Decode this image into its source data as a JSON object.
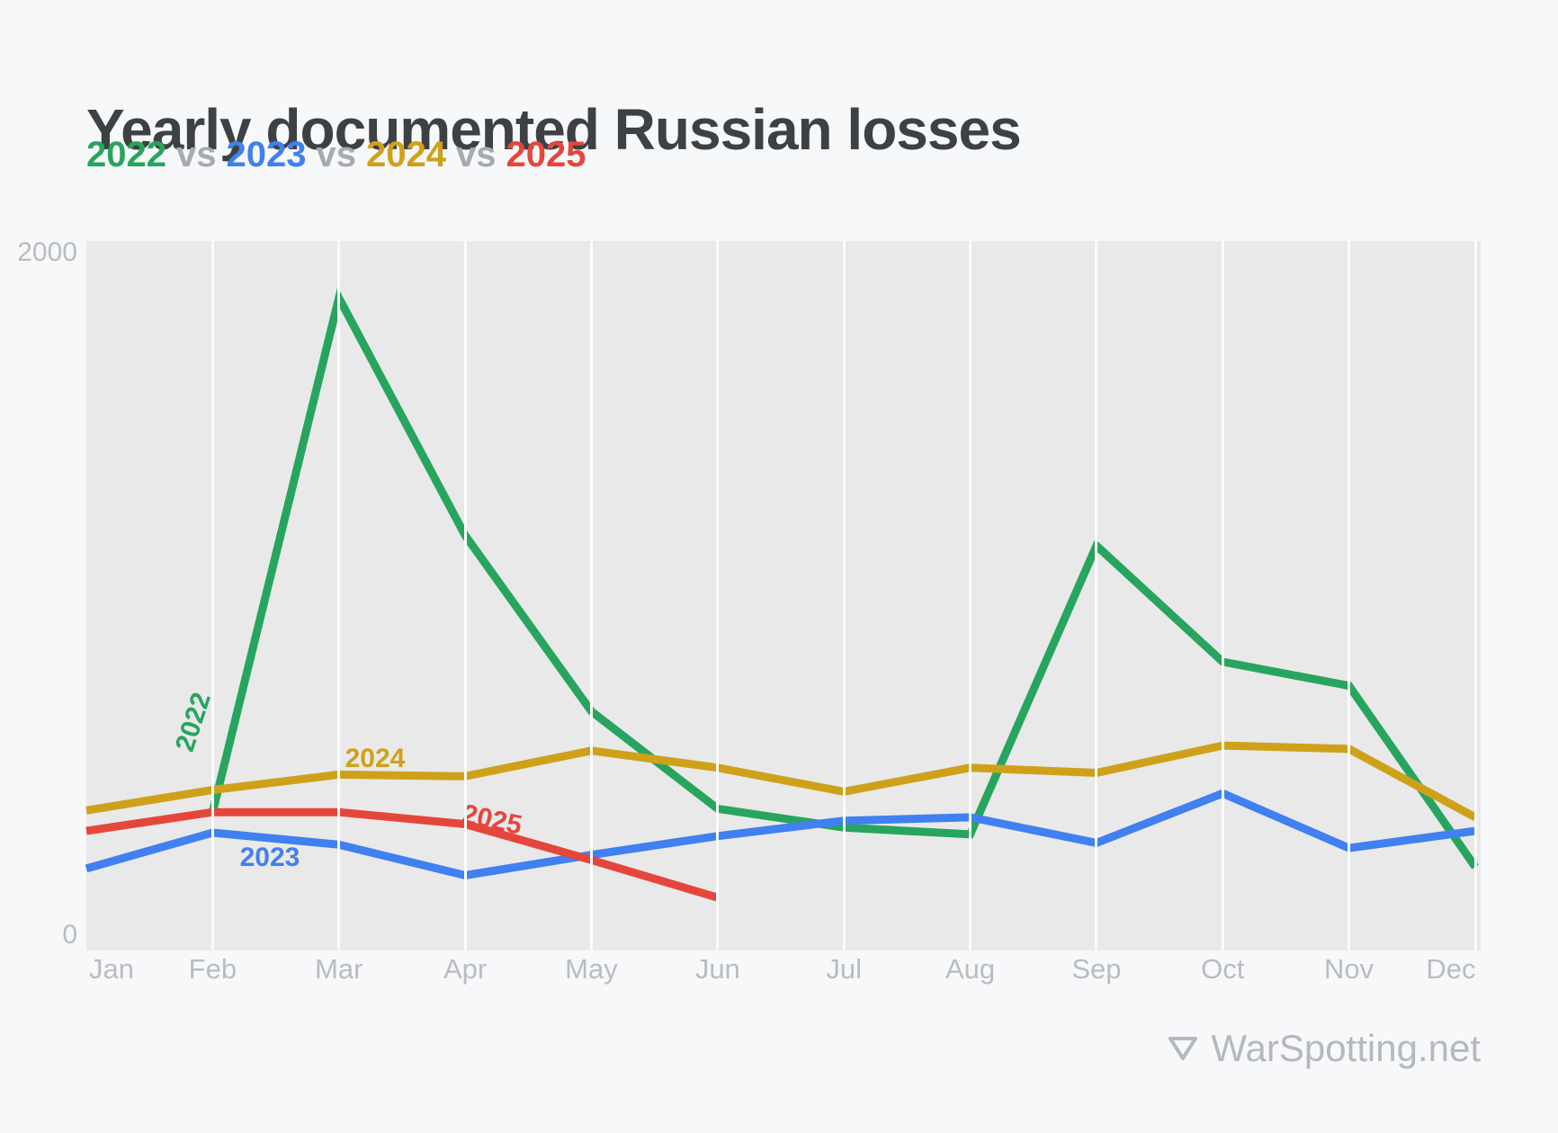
{
  "header": {
    "title": "Yearly documented Russian losses",
    "subtitle_separator": "vs"
  },
  "colors": {
    "title": "#3e4144",
    "separator_gray": "#a7aaae",
    "axis_label": "#b9bcc0",
    "page_background": "#f7f8f9",
    "plot_background": "#e9e9e9",
    "gridline": "#fbfbfb",
    "footer_gray": "#b5b8bc"
  },
  "y_axis": {
    "top_label": "2000",
    "bottom_label": "0"
  },
  "footer": {
    "brand": "WarSpotting.net",
    "icon": "triangle-down-outline-icon"
  },
  "chart_data": {
    "type": "line",
    "title": "Yearly documented Russian losses",
    "subtitle": "2022 vs 2023 vs 2024 vs 2025",
    "categories": [
      "Jan",
      "Feb",
      "Mar",
      "Apr",
      "May",
      "Jun",
      "Jul",
      "Aug",
      "Sep",
      "Oct",
      "Nov",
      "Dec"
    ],
    "ylim": [
      0,
      2000
    ],
    "ytick_labels": [
      "2000",
      "0"
    ],
    "grid": "vertical month gridlines on gray plot background, no horizontal gridlines",
    "legend": "inline colored years in subtitle + labels on lines",
    "series": [
      {
        "name": "2022",
        "color": "#27a55e",
        "values": [
          null,
          360,
          1865,
          1170,
          655,
          370,
          315,
          295,
          1140,
          800,
          730,
          200
        ]
      },
      {
        "name": "2023",
        "color": "#4080f0",
        "values": [
          195,
          300,
          265,
          175,
          235,
          290,
          335,
          345,
          270,
          415,
          255,
          305
        ]
      },
      {
        "name": "2024",
        "color": "#cfa11a",
        "values": [
          365,
          425,
          470,
          465,
          540,
          490,
          420,
          490,
          475,
          555,
          545,
          345
        ]
      },
      {
        "name": "2025",
        "color": "#e5463c",
        "values": [
          305,
          360,
          360,
          325,
          220,
          110,
          null,
          null,
          null,
          null,
          null,
          null
        ]
      }
    ]
  }
}
